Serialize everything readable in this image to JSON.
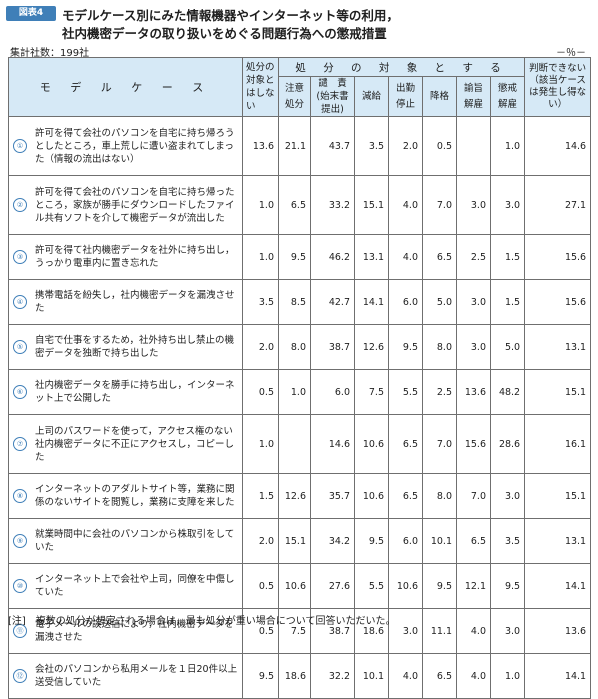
{
  "header": {
    "badge": "図表4",
    "title_line1": "モデルケース別にみた情報機器やインターネット等の利用，",
    "title_line2": "社内機密データの取り扱いをめぐる問題行為への懲戒措置",
    "sample": "集計社数：199社",
    "unit": "－％－"
  },
  "table": {
    "col_case": "モ デ ル ケ ー ス",
    "col_none": "処分の対象とはしない",
    "group": "処 分 の 対 象 と す る",
    "col_caution": [
      "注意",
      "処分"
    ],
    "col_reprimand": [
      "譴　責",
      "(始末書",
      "提出)"
    ],
    "col_paycut": "減給",
    "col_suspend": [
      "出勤",
      "停止"
    ],
    "col_demote": "降格",
    "col_advised": [
      "諭旨",
      "解雇"
    ],
    "col_dismiss": [
      "懲戒",
      "解雇"
    ],
    "col_judge": "判断できない（該当ケースは発生し得ない）",
    "rows": [
      {
        "no": "①",
        "text": "許可を得て会社のパソコンを自宅に持ち帰ろうとしたところ，車上荒しに遭い盗まれてしまった（情報の流出はない）",
        "none": "13.6",
        "caution": "21.1",
        "reprimand": "43.7",
        "paycut": "3.5",
        "suspend": "2.0",
        "demote": "0.5",
        "advised": "",
        "dismiss": "1.0",
        "judge": "14.6"
      },
      {
        "no": "②",
        "text": "許可を得て会社のパソコンを自宅に持ち帰ったところ，家族が勝手にダウンロードしたファイル共有ソフトを介して機密データが流出した",
        "none": "1.0",
        "caution": "6.5",
        "reprimand": "33.2",
        "paycut": "15.1",
        "suspend": "4.0",
        "demote": "7.0",
        "advised": "3.0",
        "dismiss": "3.0",
        "judge": "27.1"
      },
      {
        "no": "③",
        "text": "許可を得て社内機密データを社外に持ち出し，うっかり電車内に置き忘れた",
        "none": "1.0",
        "caution": "9.5",
        "reprimand": "46.2",
        "paycut": "13.1",
        "suspend": "4.0",
        "demote": "6.5",
        "advised": "2.5",
        "dismiss": "1.5",
        "judge": "15.6"
      },
      {
        "no": "④",
        "text": "携帯電話を紛失し，社内機密データを漏洩させた",
        "none": "3.5",
        "caution": "8.5",
        "reprimand": "42.7",
        "paycut": "14.1",
        "suspend": "6.0",
        "demote": "5.0",
        "advised": "3.0",
        "dismiss": "1.5",
        "judge": "15.6"
      },
      {
        "no": "⑤",
        "text": "自宅で仕事をするため，社外持ち出し禁止の機密データを独断で持ち出した",
        "none": "2.0",
        "caution": "8.0",
        "reprimand": "38.7",
        "paycut": "12.6",
        "suspend": "9.5",
        "demote": "8.0",
        "advised": "3.0",
        "dismiss": "5.0",
        "judge": "13.1"
      },
      {
        "no": "⑥",
        "text": "社内機密データを勝手に持ち出し，インターネット上で公開した",
        "none": "0.5",
        "caution": "1.0",
        "reprimand": "6.0",
        "paycut": "7.5",
        "suspend": "5.5",
        "demote": "2.5",
        "advised": "13.6",
        "dismiss": "48.2",
        "judge": "15.1"
      },
      {
        "no": "⑦",
        "text": "上司のパスワードを使って，アクセス権のない社内機密データに不正にアクセスし，コピーした",
        "none": "1.0",
        "caution": "",
        "reprimand": "14.6",
        "paycut": "10.6",
        "suspend": "6.5",
        "demote": "7.0",
        "advised": "15.6",
        "dismiss": "28.6",
        "judge": "16.1"
      },
      {
        "no": "⑧",
        "text": "インターネットのアダルトサイト等，業務に関係のないサイトを閲覧し，業務に支障を来した",
        "none": "1.5",
        "caution": "12.6",
        "reprimand": "35.7",
        "paycut": "10.6",
        "suspend": "6.5",
        "demote": "8.0",
        "advised": "7.0",
        "dismiss": "3.0",
        "judge": "15.1"
      },
      {
        "no": "⑨",
        "text": "就業時間中に会社のパソコンから株取引をしていた",
        "none": "2.0",
        "caution": "15.1",
        "reprimand": "34.2",
        "paycut": "9.5",
        "suspend": "6.0",
        "demote": "10.1",
        "advised": "6.5",
        "dismiss": "3.5",
        "judge": "13.1"
      },
      {
        "no": "⑩",
        "text": "インターネット上で会社や上司，同僚を中傷していた",
        "none": "0.5",
        "caution": "10.6",
        "reprimand": "27.6",
        "paycut": "5.5",
        "suspend": "10.6",
        "demote": "9.5",
        "advised": "12.1",
        "dismiss": "9.5",
        "judge": "14.1"
      },
      {
        "no": "⑪",
        "text": "電子メールの誤送信により，社内機密データを漏洩させた",
        "none": "0.5",
        "caution": "7.5",
        "reprimand": "38.7",
        "paycut": "18.6",
        "suspend": "3.0",
        "demote": "11.1",
        "advised": "4.0",
        "dismiss": "3.0",
        "judge": "13.6"
      },
      {
        "no": "⑫",
        "text": "会社のパソコンから私用メールを１日20件以上送受信していた",
        "none": "9.5",
        "caution": "18.6",
        "reprimand": "32.2",
        "paycut": "10.1",
        "suspend": "4.0",
        "demote": "6.5",
        "advised": "4.0",
        "dismiss": "1.0",
        "judge": "14.1"
      }
    ]
  },
  "note": "[注]　複数の処分が想定される場合は，最も処分が重い場合について回答いただいた。",
  "colors": {
    "accent": "#3f7fb8",
    "header_bg": "#d6e9f6",
    "border": "#6f6f6f"
  }
}
